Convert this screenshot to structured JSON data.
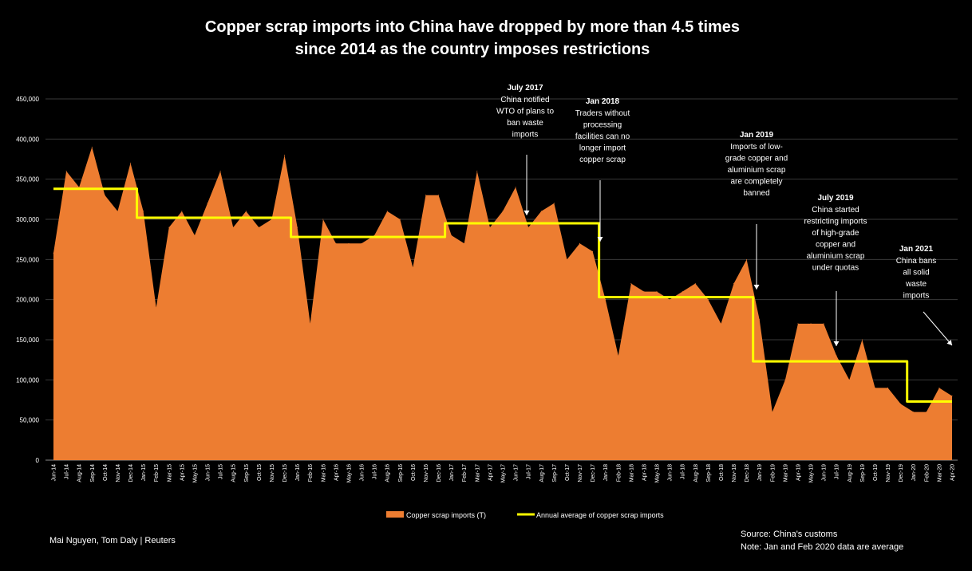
{
  "title_line1": "Copper scrap imports into China have dropped by more than 4.5 times",
  "title_line2": "since 2014 as the country imposes restrictions",
  "credit": "Mai Nguyen, Tom Daly | Reuters",
  "source": "Source: China's customs",
  "note": "Note: Jan and Feb 2020 data are average",
  "colors": {
    "area": "#ED7D31",
    "avg_line": "#FFFF00",
    "background": "#000000",
    "text": "#FFFFFF",
    "grid": "#3A3A3A"
  },
  "chart_data": {
    "type": "area",
    "ylim": [
      0,
      450000
    ],
    "y_ticks": [
      "0",
      "50,000",
      "100,000",
      "150,000",
      "200,000",
      "250,000",
      "300,000",
      "350,000",
      "400,000",
      "450,000"
    ],
    "categories": [
      "Jun-14",
      "Jul-14",
      "Aug-14",
      "Sep-14",
      "Oct-14",
      "Nov-14",
      "Dec-14",
      "Jan-15",
      "Feb-15",
      "Mar-15",
      "Apr-15",
      "May-15",
      "Jun-15",
      "Jul-15",
      "Aug-15",
      "Sep-15",
      "Oct-15",
      "Nov-15",
      "Dec-15",
      "Jan-16",
      "Feb-16",
      "Mar-16",
      "Apr-16",
      "May-16",
      "Jun-16",
      "Jul-16",
      "Aug-16",
      "Sep-16",
      "Oct-16",
      "Nov-16",
      "Dec-16",
      "Jan-17",
      "Feb-17",
      "Mar-17",
      "Apr-17",
      "May-17",
      "Jun-17",
      "Jul-17",
      "Aug-17",
      "Sep-17",
      "Oct-17",
      "Nov-17",
      "Dec-17",
      "Jan-18",
      "Feb-18",
      "Mar-18",
      "Apr-18",
      "May-18",
      "Jun-18",
      "Jul-18",
      "Aug-18",
      "Sep-18",
      "Oct-18",
      "Nov-18",
      "Dec-18",
      "Jan-19",
      "Feb-19",
      "Mar-19",
      "Apr-19",
      "May-19",
      "Jun-19",
      "Jul-19",
      "Aug-19",
      "Sep-19",
      "Oct-19",
      "Nov-19",
      "Dec-19",
      "Jan-20",
      "Feb-20",
      "Mar-20",
      "Apr-20"
    ],
    "series": [
      {
        "name": "Copper scrap imports (T)",
        "values": [
          258000,
          360000,
          340000,
          390000,
          330000,
          310000,
          370000,
          310000,
          190000,
          290000,
          310000,
          280000,
          320000,
          360000,
          290000,
          310000,
          290000,
          300000,
          380000,
          290000,
          170000,
          300000,
          270000,
          270000,
          270000,
          280000,
          310000,
          300000,
          240000,
          330000,
          330000,
          280000,
          270000,
          360000,
          290000,
          310000,
          340000,
          290000,
          310000,
          320000,
          250000,
          270000,
          260000,
          200000,
          130000,
          220000,
          210000,
          210000,
          200000,
          210000,
          220000,
          200000,
          170000,
          220000,
          250000,
          175000,
          60000,
          100000,
          170000,
          170000,
          170000,
          130000,
          100000,
          150000,
          90000,
          90000,
          70000,
          60000,
          60000,
          90000,
          80000
        ]
      },
      {
        "name": "Annual average of copper scrap imports",
        "segments": [
          {
            "from": "Jun-14",
            "to": "Dec-14",
            "value": 338000
          },
          {
            "from": "Jan-15",
            "to": "Dec-15",
            "value": 302000
          },
          {
            "from": "Jan-16",
            "to": "Dec-16",
            "value": 278000
          },
          {
            "from": "Jan-17",
            "to": "Dec-17",
            "value": 295000
          },
          {
            "from": "Jan-18",
            "to": "Dec-18",
            "value": 203000
          },
          {
            "from": "Jan-19",
            "to": "Dec-19",
            "value": 123000
          },
          {
            "from": "Jan-20",
            "to": "Apr-20",
            "value": 73000
          }
        ]
      }
    ],
    "legend_position": "bottom",
    "grid": true,
    "annotations": [
      {
        "heading": "July 2017",
        "lines": [
          "China notified",
          "WTO of plans to",
          "ban waste",
          "imports"
        ],
        "target_category": "Jul-17",
        "target_value": 300000
      },
      {
        "heading": "Jan 2018",
        "lines": [
          "Traders without",
          "processing",
          "facilities can no",
          "longer import",
          "copper scrap"
        ],
        "target_category": "Jan-18",
        "target_value": 267000
      },
      {
        "heading": "Jan 2019",
        "lines": [
          "Imports of low-",
          "grade copper and",
          "aluminium scrap",
          "are completely",
          "banned"
        ],
        "target_category": "Jan-19",
        "target_value": 208000
      },
      {
        "heading": "July 2019",
        "lines": [
          "China started",
          "restricting imports",
          "of high-grade",
          "copper and",
          "aluminium scrap",
          "under quotas"
        ],
        "target_category": "Jul-19",
        "target_value": 138000
      },
      {
        "heading": "Jan 2021",
        "lines": [
          "China bans",
          "all solid",
          "waste",
          "imports"
        ],
        "target_category": "Apr-20",
        "target_value": 140000
      }
    ]
  }
}
